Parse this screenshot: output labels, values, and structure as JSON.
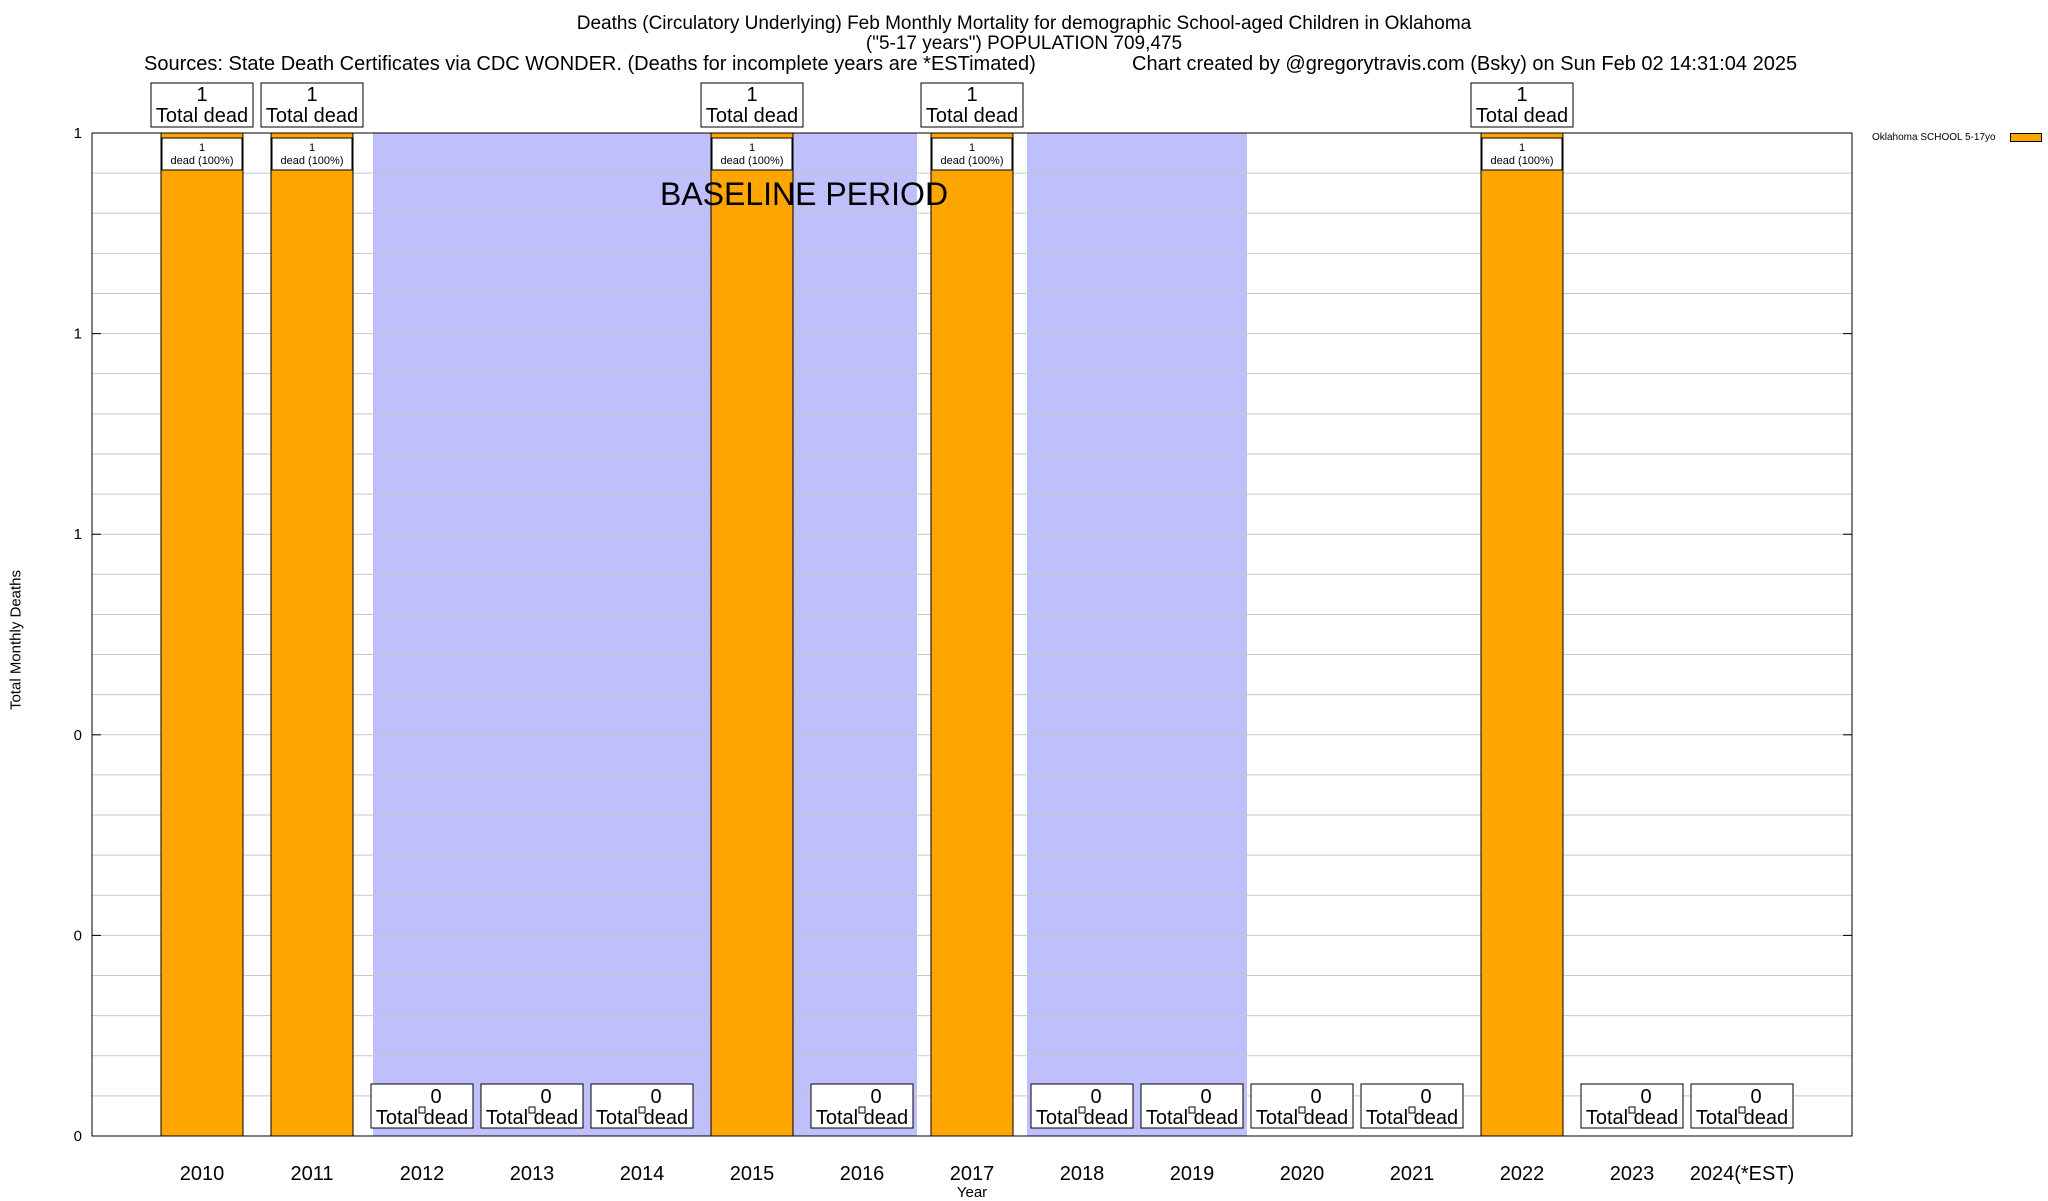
{
  "title_line1": "Deaths (Circulatory Underlying) Feb Monthly Mortality for demographic School-aged Children in Oklahoma",
  "title_line2": "(\"5-17 years\") POPULATION 709,475",
  "sources": "Sources: State Death Certificates via CDC WONDER. (Deaths for incomplete years are *ESTimated)",
  "credit": "Chart created by @gregorytravis.com (Bsky) on Sun Feb 02 14:31:04 2025",
  "legend_label": "Oklahoma SCHOOL 5-17yo",
  "colors": {
    "bar": "#ffa500",
    "baseline": "#bfbffc",
    "grid": "#c8c8c8"
  },
  "chart_data": {
    "type": "bar",
    "title": "Deaths (Circulatory Underlying) Feb Monthly Mortality for demographic School-aged Children in Oklahoma",
    "xlabel": "Year",
    "ylabel": "Total Monthly Deaths",
    "categories": [
      "2010",
      "2011",
      "2012",
      "2013",
      "2014",
      "2015",
      "2016",
      "2017",
      "2018",
      "2019",
      "2020",
      "2021",
      "2022",
      "2023",
      "2024(*EST)"
    ],
    "series": [
      {
        "name": "Oklahoma SCHOOL 5-17yo",
        "values": [
          1,
          1,
          0,
          0,
          0,
          1,
          0,
          1,
          0,
          0,
          0,
          0,
          1,
          0,
          0
        ]
      }
    ],
    "ylim": [
      0,
      1
    ],
    "yticks": [
      {
        "value": 0,
        "label": "0"
      },
      {
        "value": 0.2,
        "label": "0"
      },
      {
        "value": 0.4,
        "label": "0"
      },
      {
        "value": 0.6,
        "label": "1"
      },
      {
        "value": 0.8,
        "label": "1"
      },
      {
        "value": 1.0,
        "label": "1"
      }
    ],
    "total_label_suffix": "Total dead",
    "share_label_suffix": "dead (100%)",
    "annotation": "BASELINE PERIOD",
    "baseline_segments": [
      {
        "from": "2012",
        "to": "2014"
      },
      {
        "from": "2015",
        "to": "2015"
      },
      {
        "from": "2016",
        "to": "2016"
      },
      {
        "from": "2018",
        "to": "2019"
      }
    ],
    "grid": true,
    "legend_position": "top-right"
  }
}
